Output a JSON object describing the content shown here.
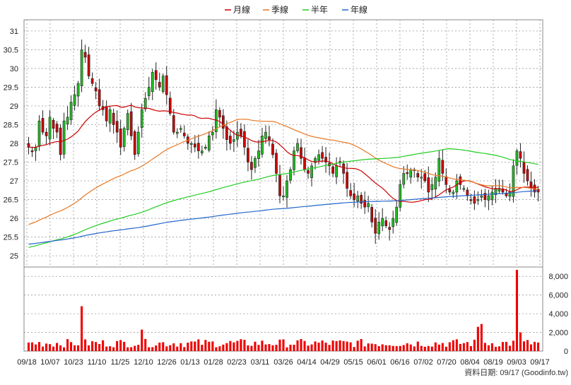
{
  "legend": [
    {
      "label": "月線",
      "color": "#cc0000"
    },
    {
      "label": "季線",
      "color": "#e87722"
    },
    {
      "label": "半年",
      "color": "#22cc22"
    },
    {
      "label": "年線",
      "color": "#2266cc"
    }
  ],
  "footer": "資料日期: 09/17  (Goodinfo.tw)",
  "chart_data": [
    {
      "type": "candlestick",
      "ylim": [
        24.7,
        31.3
      ],
      "y_ticks": [
        25,
        25.5,
        26,
        26.5,
        27,
        27.5,
        28,
        28.5,
        29,
        29.5,
        30,
        30.5,
        31
      ],
      "x_ticks": [
        "09/18",
        "10/07",
        "10/23",
        "11/10",
        "11/25",
        "12/10",
        "12/26",
        "01/13",
        "01/28",
        "02/23",
        "03/11",
        "03/26",
        "04/14",
        "04/29",
        "05/15",
        "06/01",
        "06/16",
        "07/02",
        "07/20",
        "08/04",
        "08/19",
        "09/03",
        "09/17"
      ],
      "grid": true,
      "up_color": "#22bb22",
      "down_color": "#cc0000",
      "closes": [
        27.9,
        27.8,
        27.9,
        28.6,
        28.3,
        28.2,
        28.7,
        28.4,
        28.3,
        27.7,
        28.6,
        28.7,
        29.1,
        29.3,
        29.6,
        30.5,
        30.3,
        29.8,
        29.6,
        29.4,
        29.0,
        28.9,
        28.6,
        28.9,
        28.5,
        28.3,
        27.9,
        28.4,
        28.8,
        28.2,
        27.7,
        28.3,
        28.9,
        29.2,
        29.5,
        29.9,
        29.7,
        29.5,
        29.8,
        29.3,
        28.8,
        28.3,
        28.3,
        28.4,
        28.2,
        28.0,
        28.0,
        27.9,
        27.8,
        27.8,
        27.9,
        28.2,
        28.3,
        28.9,
        28.7,
        28.4,
        28.1,
        28.0,
        28.1,
        28.3,
        28.2,
        27.9,
        27.5,
        27.3,
        27.6,
        27.8,
        28.2,
        28.3,
        28.1,
        27.7,
        27.2,
        26.6,
        26.6,
        27.0,
        27.3,
        27.8,
        28.0,
        27.6,
        27.3,
        27.2,
        27.4,
        27.6,
        27.7,
        27.6,
        27.5,
        27.4,
        27.2,
        27.4,
        27.5,
        27.2,
        26.8,
        26.6,
        26.5,
        26.6,
        26.4,
        26.3,
        26.4,
        25.9,
        25.6,
        25.9,
        26.0,
        25.8,
        25.7,
        26.0,
        26.3,
        26.9,
        27.2,
        27.2,
        27.3,
        27.3,
        27.1,
        27.1,
        27.0,
        26.7,
        26.9,
        27.1,
        27.6,
        27.2,
        26.9,
        26.7,
        26.7,
        27.0,
        26.9,
        26.8,
        26.6,
        26.5,
        26.4,
        26.5,
        26.6,
        26.5,
        26.6,
        26.7,
        26.8,
        26.8,
        26.7,
        26.6,
        26.7,
        27.4,
        27.8,
        27.6,
        27.2,
        27.0,
        26.8,
        26.7,
        26.7
      ],
      "volume_ylim": [
        0,
        9000
      ],
      "volume_ticks": [
        0,
        2000,
        4000,
        6000,
        8000
      ],
      "volume_tick_labels": [
        "0",
        "2,000",
        "4,000",
        "6,000",
        "8,000"
      ],
      "volume_color": "#ee0000",
      "volume_spikes": [
        {
          "index": 15,
          "value": 4800
        },
        {
          "index": 32,
          "value": 2300
        },
        {
          "index": 127,
          "value": 2600
        },
        {
          "index": 128,
          "value": 2900
        },
        {
          "index": 138,
          "value": 8700
        },
        {
          "index": 139,
          "value": 2000
        }
      ]
    }
  ]
}
